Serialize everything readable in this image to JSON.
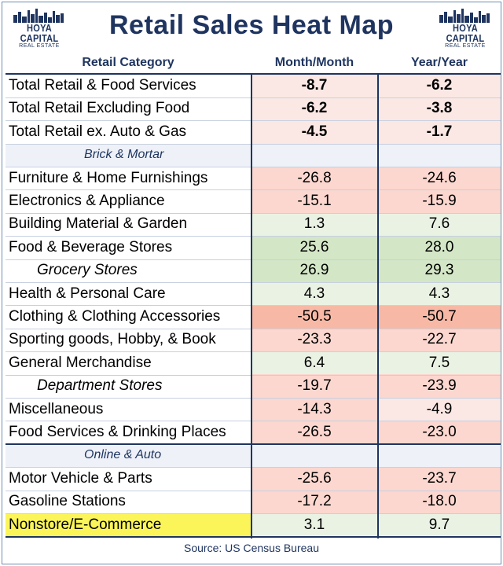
{
  "title": "Retail Sales Heat Map",
  "logo": {
    "name": "HOYA CAPITAL",
    "sub": "REAL ESTATE"
  },
  "columns": {
    "category": "Retail Category",
    "mom": "Month/Month",
    "yoy": "Year/Year"
  },
  "colors": {
    "title": "#1f3560",
    "strong_negative": "#f7b9a6",
    "mid_negative": "#fbd7cf",
    "light_negative": "#fbe8e4",
    "light_positive": "#eaf2e4",
    "strong_positive": "#d3e6c6",
    "highlight": "#fbf55a"
  },
  "chart_data": {
    "type": "table",
    "title": "Retail Sales Heat Map",
    "columns": [
      "Retail Category",
      "Month/Month",
      "Year/Year"
    ],
    "rows": [
      {
        "kind": "total",
        "label": "Total Retail & Food Services",
        "mom": "-8.7",
        "yoy": "-6.2"
      },
      {
        "kind": "total",
        "label": "Total Retail Excluding Food",
        "mom": "-6.2",
        "yoy": "-3.8"
      },
      {
        "kind": "total",
        "label": "Total Retail ex. Auto & Gas",
        "mom": "-4.5",
        "yoy": "-1.7"
      },
      {
        "kind": "section",
        "label": "Brick & Mortar",
        "mom": "",
        "yoy": ""
      },
      {
        "kind": "item",
        "label": "Furniture & Home Furnishings",
        "mom": "-26.8",
        "yoy": "-24.6"
      },
      {
        "kind": "item",
        "label": "Electronics & Appliance",
        "mom": "-15.1",
        "yoy": "-15.9"
      },
      {
        "kind": "item",
        "label": "Building Material & Garden",
        "mom": "1.3",
        "yoy": "7.6"
      },
      {
        "kind": "item",
        "label": "Food & Beverage Stores",
        "mom": "25.6",
        "yoy": "28.0"
      },
      {
        "kind": "sub",
        "label": "Grocery Stores",
        "mom": "26.9",
        "yoy": "29.3"
      },
      {
        "kind": "item",
        "label": "Health & Personal Care",
        "mom": "4.3",
        "yoy": "4.3"
      },
      {
        "kind": "item",
        "label": "Clothing & Clothing Accessories",
        "mom": "-50.5",
        "yoy": "-50.7"
      },
      {
        "kind": "item",
        "label": "Sporting goods, Hobby, & Book",
        "mom": "-23.3",
        "yoy": "-22.7"
      },
      {
        "kind": "item",
        "label": "General Merchandise",
        "mom": "6.4",
        "yoy": "7.5"
      },
      {
        "kind": "sub",
        "label": "Department Stores",
        "mom": "-19.7",
        "yoy": "-23.9"
      },
      {
        "kind": "item",
        "label": "Miscellaneous",
        "mom": "-14.3",
        "yoy": "-4.9"
      },
      {
        "kind": "item",
        "label": "Food Services & Drinking Places",
        "mom": "-26.5",
        "yoy": "-23.0"
      },
      {
        "kind": "section",
        "label": "Online & Auto",
        "mom": "",
        "yoy": ""
      },
      {
        "kind": "item",
        "label": "Motor Vehicle & Parts",
        "mom": "-25.6",
        "yoy": "-23.7"
      },
      {
        "kind": "item",
        "label": "Gasoline Stations",
        "mom": "-17.2",
        "yoy": "-18.0"
      },
      {
        "kind": "highlight",
        "label": "Nonstore/E-Commerce",
        "mom": "3.1",
        "yoy": "9.7"
      }
    ]
  },
  "source": "Source: US Census Bureau"
}
